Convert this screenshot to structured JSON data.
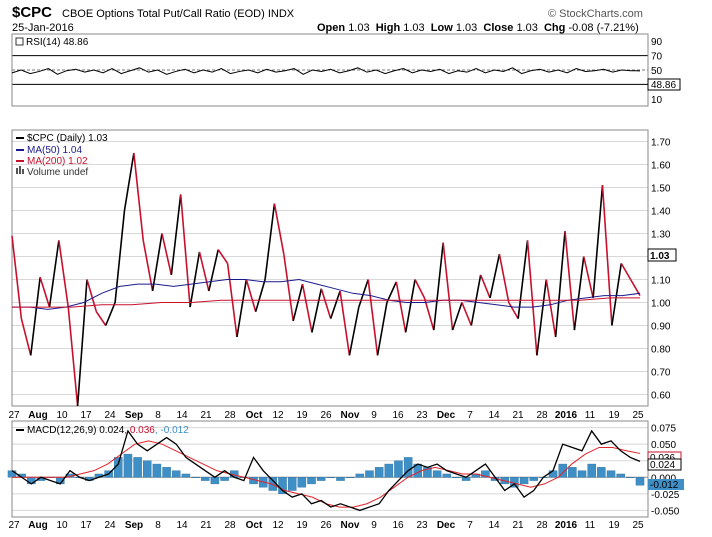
{
  "header": {
    "symbol": "$CPC",
    "name": "CBOE Options Total Put/Call Ratio (EOD)",
    "exchange": "INDX",
    "watermark": "© StockCharts.com",
    "date": "25-Jan-2016",
    "open_label": "Open",
    "open": "1.03",
    "high_label": "High",
    "high": "1.03",
    "low_label": "Low",
    "low": "1.03",
    "close_label": "Close",
    "close": "1.03",
    "chg_label": "Chg",
    "chg": "-0.08 (-7.21%)"
  },
  "rsi_panel": {
    "legend": "RSI(14) 48.86",
    "current_label": "48.86",
    "y_ticks": [
      "90",
      "70",
      "50",
      "30",
      "10"
    ]
  },
  "price_panel": {
    "legend_price": "$CPC (Daily) 1.03",
    "legend_ma50": "MA(50) 1.04",
    "legend_ma200": "MA(200) 1.02",
    "legend_volume": "Volume undef",
    "current_label": "1.03",
    "y_ticks": [
      "1.70",
      "1.60",
      "1.50",
      "1.40",
      "1.30",
      "1.20",
      "1.10",
      "1.00",
      "0.90",
      "0.80",
      "0.70",
      "0.60"
    ]
  },
  "macd_panel": {
    "legend_main": "MACD(12,26,9) 0.024, 0.036, -0.012",
    "labels": {
      "macd": "0.024",
      "signal": "0.036",
      "hist": "-0.012"
    },
    "y_ticks": [
      "0.075",
      "0.050",
      "0.025",
      "0.000",
      "-0.025",
      "-0.050"
    ]
  },
  "x_axis": {
    "labels": [
      "27",
      "Aug",
      "10",
      "17",
      "24",
      "Sep",
      "8",
      "14",
      "21",
      "28",
      "Oct",
      "12",
      "19",
      "26",
      "Nov",
      "9",
      "16",
      "23",
      "Dec",
      "7",
      "14",
      "21",
      "28",
      "2016",
      "11",
      "19",
      "25"
    ],
    "bold": [
      "Aug",
      "Sep",
      "Oct",
      "Nov",
      "Dec",
      "2016"
    ]
  },
  "colors": {
    "price_up": "#000000",
    "price_down": "#c8102e",
    "ma50": "#1a1a8c",
    "ma200": "#c8102e",
    "macd_line": "#000000",
    "signal_line": "#e0242a",
    "histogram": "#3f8fc7",
    "grid": "#d8d8d8"
  },
  "chart_data": [
    {
      "type": "line",
      "title": "RSI(14)",
      "ylim": [
        0,
        100
      ],
      "series": [
        {
          "name": "RSI(14)",
          "values": [
            46,
            50,
            45,
            48,
            52,
            44,
            49,
            51,
            47,
            50,
            46,
            52,
            45,
            49,
            53,
            47,
            50,
            44,
            48,
            51,
            46,
            50,
            47,
            52,
            45,
            48,
            50,
            46,
            51,
            47,
            49,
            52,
            44,
            50,
            48,
            51,
            46,
            49,
            53,
            47,
            50,
            45,
            49,
            52,
            46,
            50,
            48,
            51,
            45,
            49,
            47,
            52,
            46,
            50,
            48,
            53,
            45,
            49,
            51,
            47,
            50,
            46,
            52,
            48,
            49,
            51,
            47,
            50,
            49,
            48.86
          ]
        }
      ],
      "reference_lines": [
        70,
        50,
        30
      ]
    },
    {
      "type": "line",
      "title": "$CPC (Daily)",
      "ylim": [
        0.55,
        1.75
      ],
      "series": [
        {
          "name": "$CPC (Daily)",
          "values": [
            1.29,
            0.93,
            0.77,
            1.11,
            0.98,
            1.27,
            0.98,
            0.55,
            1.1,
            0.96,
            0.9,
            1.0,
            1.4,
            1.65,
            1.27,
            1.05,
            1.3,
            1.12,
            1.47,
            0.98,
            1.22,
            1.05,
            1.23,
            1.17,
            0.85,
            1.1,
            0.96,
            1.1,
            1.43,
            1.21,
            0.92,
            1.08,
            0.87,
            1.06,
            0.93,
            1.05,
            0.77,
            0.98,
            1.1,
            0.77,
            1.0,
            1.09,
            0.87,
            1.1,
            1.02,
            0.88,
            1.26,
            0.88,
            1.0,
            0.9,
            1.12,
            1.02,
            1.21,
            1.0,
            0.93,
            1.27,
            0.77,
            1.1,
            0.85,
            1.31,
            0.88,
            1.2,
            1.02,
            1.51,
            0.9,
            1.17,
            1.1,
            1.03
          ]
        },
        {
          "name": "MA(50)",
          "values": [
            0.98,
            0.98,
            0.97,
            0.98,
            1.0,
            1.04,
            1.07,
            1.08,
            1.08,
            1.07,
            1.08,
            1.09,
            1.1,
            1.1,
            1.09,
            1.09,
            1.1,
            1.08,
            1.06,
            1.04,
            1.03,
            1.01,
            1.0,
            1.0,
            1.01,
            1.01,
            1.0,
            0.99,
            0.98,
            0.98,
            0.99,
            1.01,
            1.02,
            1.03,
            1.03,
            1.04
          ]
        },
        {
          "name": "MA(200)",
          "values": [
            0.98,
            0.98,
            0.98,
            0.99,
            0.99,
            1.0,
            1.0,
            1.01,
            1.01,
            1.01,
            1.01,
            1.01,
            1.01,
            1.01,
            1.01,
            1.01,
            1.01,
            1.01,
            1.01,
            1.01,
            1.02,
            1.02
          ]
        }
      ]
    },
    {
      "type": "line",
      "title": "MACD(12,26,9)",
      "ylim": [
        -0.06,
        0.085
      ],
      "series": [
        {
          "name": "MACD",
          "values": [
            0.01,
            0.0,
            -0.01,
            0.0,
            -0.005,
            -0.01,
            0.01,
            0.0,
            -0.005,
            0.0,
            0.005,
            0.02,
            0.07,
            0.05,
            0.04,
            0.05,
            0.06,
            0.05,
            0.03,
            0.02,
            0.01,
            0.0,
            0.01,
            0.0,
            -0.005,
            0.03,
            0.01,
            -0.005,
            -0.02,
            -0.03,
            -0.025,
            -0.04,
            -0.035,
            -0.045,
            -0.04,
            -0.045,
            -0.05,
            -0.045,
            -0.04,
            -0.02,
            -0.005,
            0.01,
            0.02,
            0.015,
            0.02,
            0.01,
            0.005,
            0.0,
            0.01,
            0.02,
            0.0,
            -0.02,
            -0.01,
            -0.03,
            -0.02,
            0.0,
            0.01,
            0.05,
            0.045,
            0.04,
            0.07,
            0.05,
            0.055,
            0.04,
            0.03,
            0.024
          ]
        },
        {
          "name": "Signal",
          "values": [
            0.0,
            0.0,
            0.0,
            0.0,
            0.0,
            0.005,
            0.01,
            0.02,
            0.035,
            0.05,
            0.055,
            0.05,
            0.04,
            0.03,
            0.02,
            0.01,
            0.005,
            0.0,
            -0.005,
            -0.01,
            -0.02,
            -0.025,
            -0.03,
            -0.04,
            -0.045,
            -0.045,
            -0.04,
            -0.03,
            -0.015,
            0.0,
            0.01,
            0.015,
            0.01,
            0.005,
            0.005,
            0.0,
            -0.005,
            -0.01,
            -0.015,
            -0.01,
            0.0,
            0.02,
            0.035,
            0.045,
            0.045,
            0.04,
            0.036
          ]
        },
        {
          "name": "Histogram",
          "values": [
            0.01,
            0.005,
            -0.01,
            -0.005,
            0.0,
            -0.01,
            0.005,
            0.0,
            -0.005,
            0.005,
            0.01,
            0.03,
            0.035,
            0.03,
            0.025,
            0.02,
            0.015,
            0.01,
            0.005,
            0.0,
            -0.005,
            -0.01,
            -0.005,
            0.01,
            0.0,
            -0.01,
            -0.015,
            -0.02,
            -0.025,
            -0.02,
            -0.015,
            -0.01,
            -0.005,
            0.0,
            -0.005,
            0.0,
            0.005,
            0.01,
            0.015,
            0.02,
            0.025,
            0.03,
            0.02,
            0.015,
            0.01,
            0.005,
            0.0,
            -0.005,
            0.005,
            0.01,
            -0.005,
            -0.01,
            -0.015,
            -0.01,
            -0.005,
            0.0,
            0.01,
            0.02,
            0.015,
            0.01,
            0.02,
            0.015,
            0.01,
            0.005,
            0.0,
            -0.012
          ]
        }
      ]
    }
  ]
}
